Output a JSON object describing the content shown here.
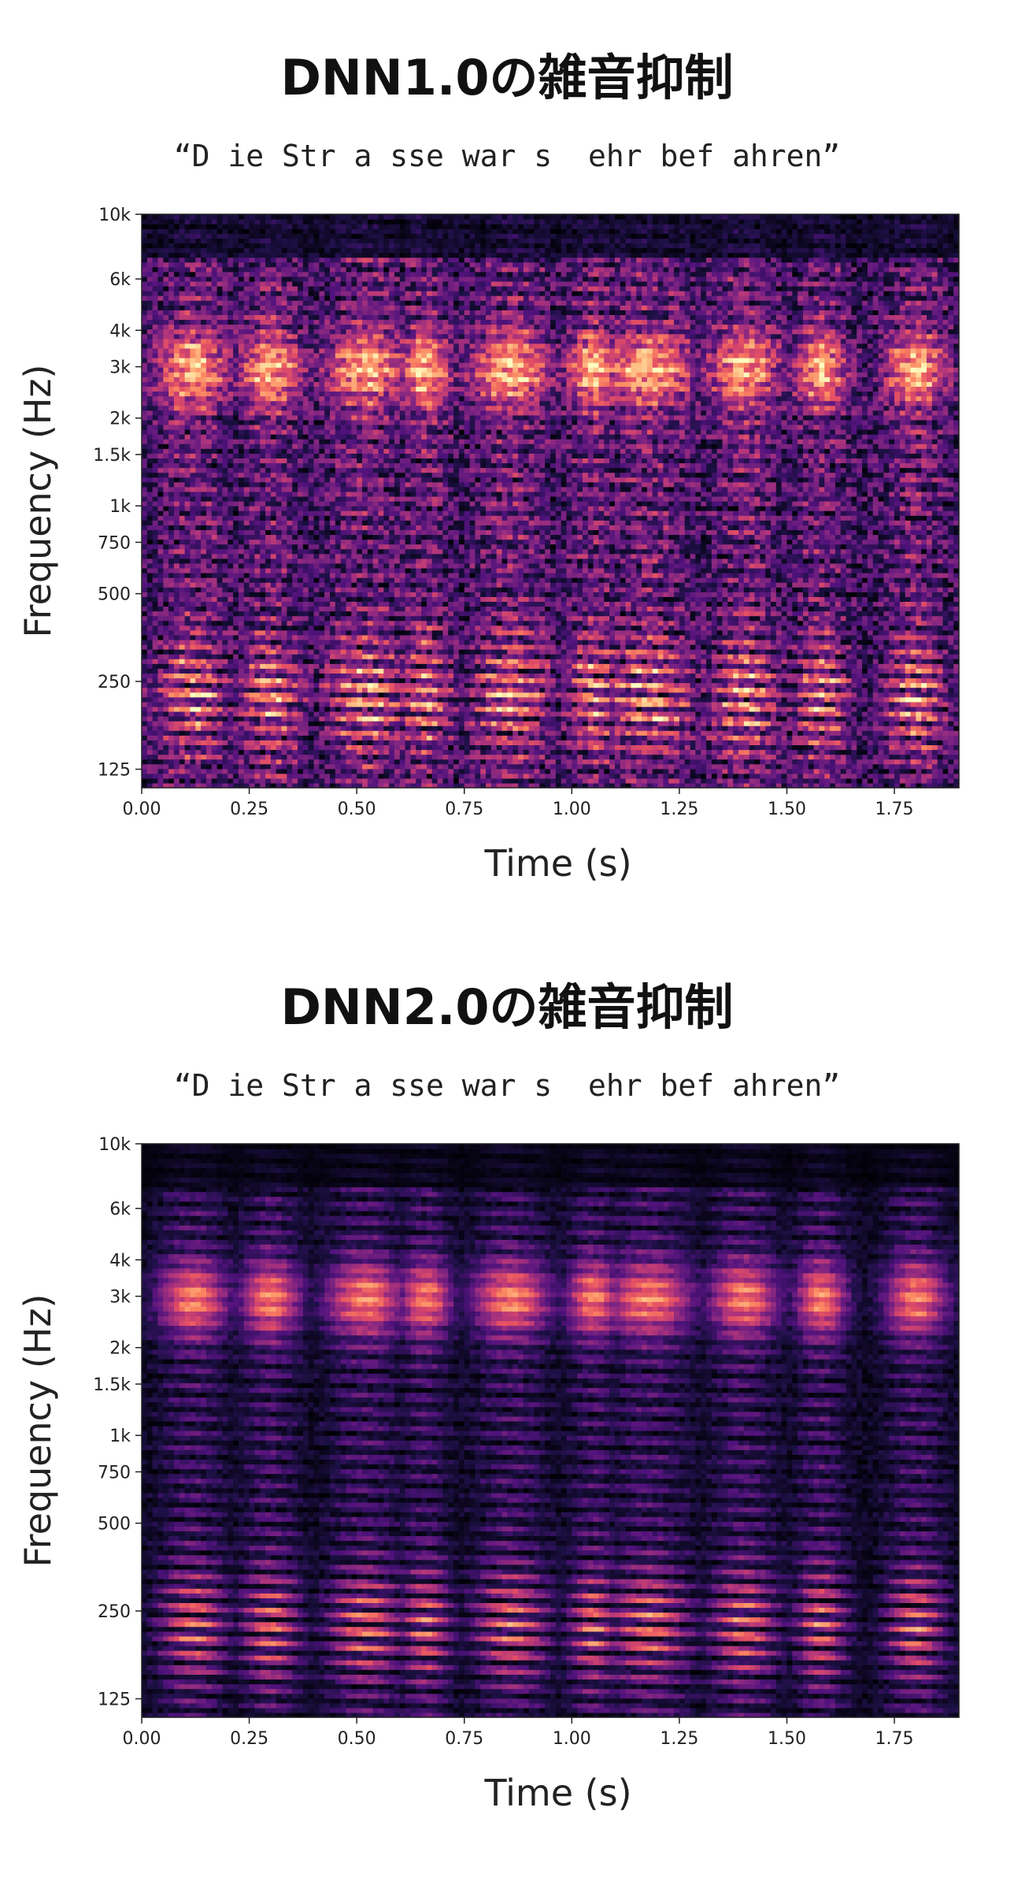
{
  "chart_data": [
    {
      "type": "heatmap",
      "title": "DNN1.0の雑音抑制",
      "subtitle": "“D ie Str a sse war s  ehr bef ahren”",
      "xlabel": "Time (s)",
      "ylabel": "Frequency (Hz)",
      "xlim": [
        0,
        1.9
      ],
      "ylim": [
        108,
        10000
      ],
      "yscale": "log",
      "x_ticks": [
        0.0,
        0.25,
        0.5,
        0.75,
        1.0,
        1.25,
        1.5,
        1.75
      ],
      "x_tick_labels": [
        "0.00",
        "0.25",
        "0.50",
        "0.75",
        "1.00",
        "1.25",
        "1.50",
        "1.75"
      ],
      "y_ticks": [
        125,
        250,
        500,
        750,
        1000,
        1500,
        2000,
        3000,
        4000,
        6000,
        10000
      ],
      "y_tick_labels": [
        "125",
        "250",
        "500",
        "750",
        "1k",
        "1.5k",
        "2k",
        "3k",
        "4k",
        "6k",
        "10k"
      ],
      "colormap": "magma",
      "noise_level": 0.42
    },
    {
      "type": "heatmap",
      "title": "DNN2.0の雑音抑制",
      "subtitle": "“D ie Str a sse war s  ehr bef ahren”",
      "xlabel": "Time (s)",
      "ylabel": "Frequency (Hz)",
      "xlim": [
        0,
        1.9
      ],
      "ylim": [
        108,
        10000
      ],
      "yscale": "log",
      "x_ticks": [
        0.0,
        0.25,
        0.5,
        0.75,
        1.0,
        1.25,
        1.5,
        1.75
      ],
      "x_tick_labels": [
        "0.00",
        "0.25",
        "0.50",
        "0.75",
        "1.00",
        "1.25",
        "1.50",
        "1.75"
      ],
      "y_ticks": [
        125,
        250,
        500,
        750,
        1000,
        1500,
        2000,
        3000,
        4000,
        6000,
        10000
      ],
      "y_tick_labels": [
        "125",
        "250",
        "500",
        "750",
        "1k",
        "1.5k",
        "2k",
        "3k",
        "4k",
        "6k",
        "10k"
      ],
      "colormap": "magma",
      "noise_level": 0.12
    }
  ]
}
